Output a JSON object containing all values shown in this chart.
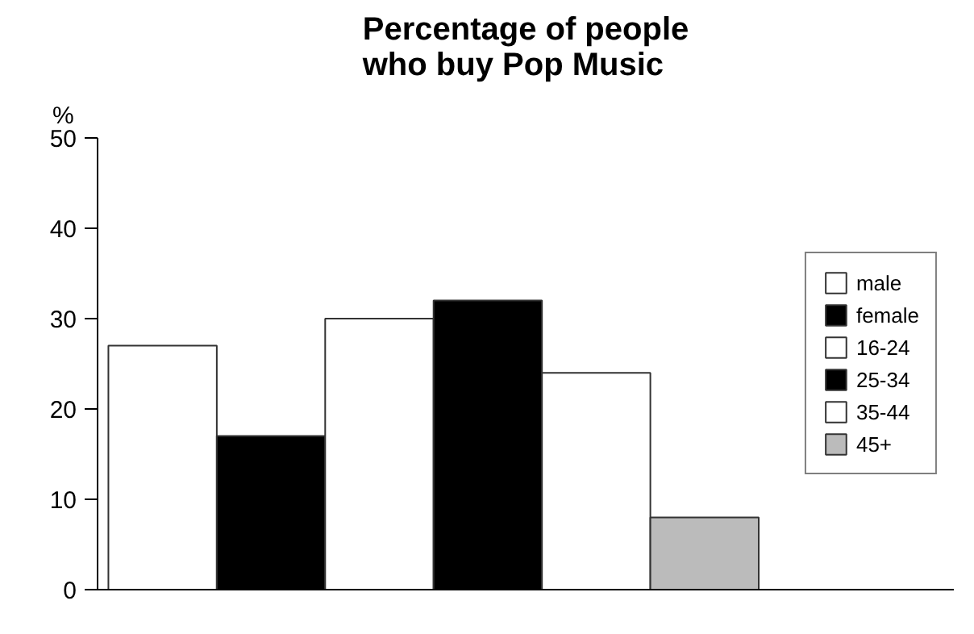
{
  "chart_data": {
    "type": "bar",
    "title": "Percentage of people\nwho buy Pop Music",
    "ylabel": "%",
    "categories": [
      null,
      null,
      null,
      null,
      null,
      null
    ],
    "series": [
      {
        "name": "male",
        "color": "#ffffff",
        "values": [
          27,
          null,
          null,
          null,
          null,
          null
        ]
      },
      {
        "name": "female",
        "color": "#000000",
        "values": [
          null,
          17,
          null,
          null,
          null,
          null
        ]
      },
      {
        "name": "16-24",
        "color": "#ffffff",
        "values": [
          null,
          null,
          30,
          null,
          null,
          null
        ]
      },
      {
        "name": "25-34",
        "color": "#000000",
        "values": [
          null,
          null,
          null,
          32,
          null,
          null
        ]
      },
      {
        "name": "35-44",
        "color": "#ffffff",
        "values": [
          null,
          null,
          null,
          null,
          24,
          null
        ]
      },
      {
        "name": "45+",
        "color": "#bbbbbb",
        "values": [
          null,
          null,
          null,
          null,
          null,
          8
        ]
      }
    ],
    "stacked": true,
    "ylim": [
      0,
      50
    ],
    "yticks": [
      0,
      10,
      20,
      30,
      40,
      50
    ],
    "grid": false,
    "legend": "right",
    "tick_labels": "y"
  }
}
